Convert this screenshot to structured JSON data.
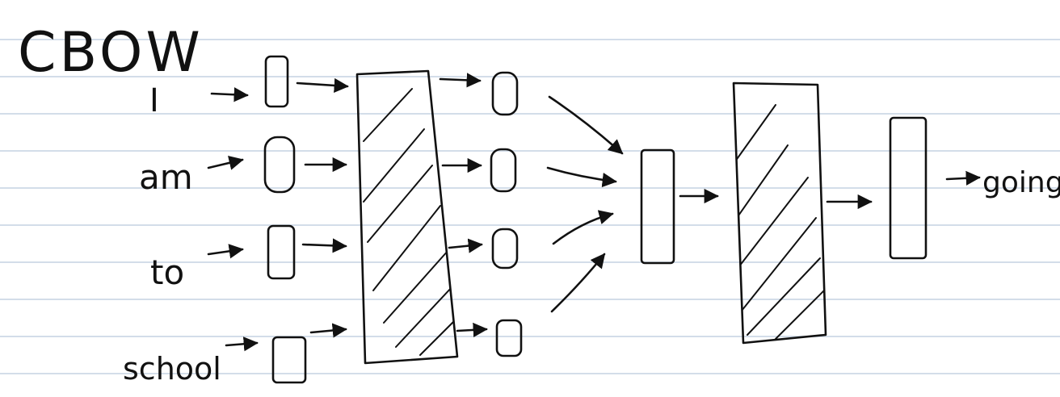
{
  "title": "CBOW",
  "inputs": [
    {
      "word": "I"
    },
    {
      "word": "am"
    },
    {
      "word": "to"
    },
    {
      "word": "school"
    }
  ],
  "output": {
    "word": "going"
  },
  "colors": {
    "ink": "#111111",
    "ruled_line": "#d3dde9",
    "paper": "#ffffff"
  }
}
